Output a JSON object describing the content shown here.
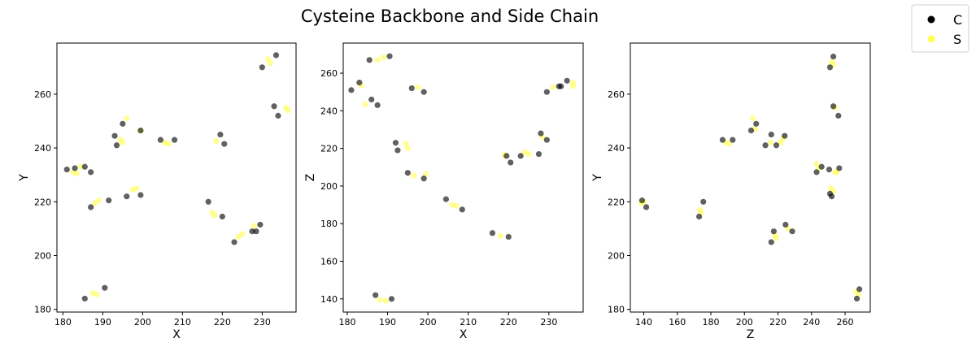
{
  "title": "Cysteine Backbone and Side Chain",
  "legend": {
    "placement": "top-right",
    "entries": [
      {
        "label": "C",
        "color": "#000000"
      },
      {
        "label": "S",
        "color": "#ffff55"
      }
    ]
  },
  "chart_data": [
    {
      "type": "scatter",
      "xlabel": "X",
      "ylabel": "Y",
      "xlim": [
        178.5,
        238.5
      ],
      "ylim": [
        179,
        279
      ],
      "xticks": [
        180,
        190,
        200,
        210,
        220,
        230
      ],
      "yticks": [
        180,
        200,
        220,
        240,
        260
      ],
      "grid": false,
      "series": [
        {
          "name": "C",
          "color": "#000000",
          "points": [
            [
              181,
              232
            ],
            [
              183,
              232.5
            ],
            [
              185.5,
              233
            ],
            [
              187,
              231
            ],
            [
              187,
              218
            ],
            [
              191.5,
              220.5
            ],
            [
              190.5,
              188
            ],
            [
              185.5,
              184
            ],
            [
              193,
              244.5
            ],
            [
              193.5,
              241
            ],
            [
              195,
              249
            ],
            [
              196,
              222
            ],
            [
              199.5,
              222.5
            ],
            [
              199.5,
              246.5
            ],
            [
              204.5,
              243
            ],
            [
              208,
              243
            ],
            [
              219.5,
              245
            ],
            [
              220.5,
              241.5
            ],
            [
              220,
              214.5
            ],
            [
              216.5,
              220
            ],
            [
              223,
              205
            ],
            [
              227.5,
              209
            ],
            [
              228.5,
              209
            ],
            [
              229.5,
              211.5
            ],
            [
              230,
              270
            ],
            [
              233,
              255.5
            ],
            [
              234,
              252
            ],
            [
              233.5,
              274.5
            ]
          ]
        },
        {
          "name": "S",
          "color": "#ffff55",
          "points": [
            [
              182.5,
              231
            ],
            [
              183.5,
              230.5
            ],
            [
              184.5,
              233
            ],
            [
              188,
              219.5
            ],
            [
              189,
              220.5
            ],
            [
              187.5,
              186
            ],
            [
              188.5,
              185.5
            ],
            [
              194.5,
              243
            ],
            [
              195,
              242
            ],
            [
              196,
              251
            ],
            [
              197.5,
              224.5
            ],
            [
              198.5,
              225
            ],
            [
              199.5,
              246.5
            ],
            [
              205.5,
              242
            ],
            [
              206.5,
              241.5
            ],
            [
              218.5,
              242.5
            ],
            [
              217.5,
              216
            ],
            [
              218,
              215
            ],
            [
              224,
              207
            ],
            [
              225,
              208
            ],
            [
              228,
              211
            ],
            [
              231.5,
              273
            ],
            [
              232,
              271.5
            ],
            [
              236,
              255
            ],
            [
              236.5,
              254
            ]
          ]
        }
      ]
    },
    {
      "type": "scatter",
      "xlabel": "X",
      "ylabel": "Z",
      "xlim": [
        179,
        238.5
      ],
      "ylim": [
        133,
        276
      ],
      "xticks": [
        180,
        190,
        200,
        210,
        220,
        230
      ],
      "yticks": [
        140,
        160,
        180,
        200,
        220,
        240,
        260
      ],
      "grid": false,
      "series": [
        {
          "name": "C",
          "color": "#000000",
          "points": [
            [
              181,
              251
            ],
            [
              183,
              255
            ],
            [
              185.5,
              267
            ],
            [
              186,
              246
            ],
            [
              187.5,
              243
            ],
            [
              190.5,
              269
            ],
            [
              192,
              223
            ],
            [
              192.5,
              219
            ],
            [
              195,
              207
            ],
            [
              196,
              252
            ],
            [
              199,
              250
            ],
            [
              199,
              204
            ],
            [
              204.5,
              193
            ],
            [
              208.5,
              187.5
            ],
            [
              187,
              142
            ],
            [
              191,
              140
            ],
            [
              216,
              175
            ],
            [
              220,
              173
            ],
            [
              219.5,
              216
            ],
            [
              220.5,
              212.5
            ],
            [
              223,
              216
            ],
            [
              227.5,
              217
            ],
            [
              228,
              228
            ],
            [
              229.5,
              224.5
            ],
            [
              229.5,
              250
            ],
            [
              232.5,
              253
            ],
            [
              233,
              253
            ],
            [
              234.5,
              256
            ]
          ]
        },
        {
          "name": "S",
          "color": "#ffff55",
          "points": [
            [
              183.5,
              253.5
            ],
            [
              184.5,
              243.5
            ],
            [
              187.5,
              267
            ],
            [
              189,
              268.5
            ],
            [
              194.5,
              222.5
            ],
            [
              195,
              220
            ],
            [
              196.5,
              205.5
            ],
            [
              197.5,
              252.5
            ],
            [
              199.5,
              206.5
            ],
            [
              206,
              190
            ],
            [
              207,
              189.5
            ],
            [
              188,
              139.5
            ],
            [
              189.5,
              139
            ],
            [
              218,
              173.5
            ],
            [
              219,
              216.5
            ],
            [
              224,
              218
            ],
            [
              225,
              217
            ],
            [
              228.5,
              226
            ],
            [
              231,
              252.5
            ],
            [
              236,
              255
            ],
            [
              236,
              253
            ]
          ]
        }
      ]
    },
    {
      "type": "scatter",
      "xlabel": "Z",
      "ylabel": "Y",
      "xlim": [
        132,
        275
      ],
      "ylim": [
        179,
        279
      ],
      "xticks": [
        140,
        160,
        180,
        200,
        220,
        240,
        260
      ],
      "yticks": [
        180,
        200,
        220,
        240,
        260
      ],
      "grid": false,
      "series": [
        {
          "name": "C",
          "color": "#000000",
          "points": [
            [
              139,
              220.5
            ],
            [
              141.5,
              218
            ],
            [
              173,
              214.5
            ],
            [
              175.5,
              220
            ],
            [
              187,
              243
            ],
            [
              193,
              243
            ],
            [
              204,
              246.5
            ],
            [
              207,
              249
            ],
            [
              212.5,
              241
            ],
            [
              216,
              245
            ],
            [
              219,
              241
            ],
            [
              224,
              244.5
            ],
            [
              216,
              205
            ],
            [
              217.5,
              209
            ],
            [
              224.5,
              211.5
            ],
            [
              228.5,
              209
            ],
            [
              243,
              231
            ],
            [
              246,
              233
            ],
            [
              250.5,
              232
            ],
            [
              251,
              223
            ],
            [
              252,
              222
            ],
            [
              251,
              270
            ],
            [
              253,
              274
            ],
            [
              253,
              255.5
            ],
            [
              256,
              252
            ],
            [
              256.5,
              232.5
            ],
            [
              267,
              184
            ],
            [
              268.5,
              187.5
            ]
          ]
        },
        {
          "name": "S",
          "color": "#ffff55",
          "points": [
            [
              138.5,
              219.5
            ],
            [
              140,
              220
            ],
            [
              173.5,
              217
            ],
            [
              174,
              216
            ],
            [
              189,
              242
            ],
            [
              191,
              241.5
            ],
            [
              205,
              251
            ],
            [
              206.5,
              247
            ],
            [
              215.5,
              242
            ],
            [
              221.5,
              242
            ],
            [
              223,
              243.5
            ],
            [
              218,
              207.5
            ],
            [
              219,
              206.5
            ],
            [
              226,
              210
            ],
            [
              243,
              234
            ],
            [
              244,
              232.5
            ],
            [
              251.5,
              225
            ],
            [
              253,
              224
            ],
            [
              252,
              272
            ],
            [
              253,
              271
            ],
            [
              254,
              255
            ],
            [
              254,
              231
            ],
            [
              255,
              231
            ],
            [
              266.5,
              186.5
            ],
            [
              268,
              185.5
            ]
          ]
        }
      ]
    }
  ]
}
